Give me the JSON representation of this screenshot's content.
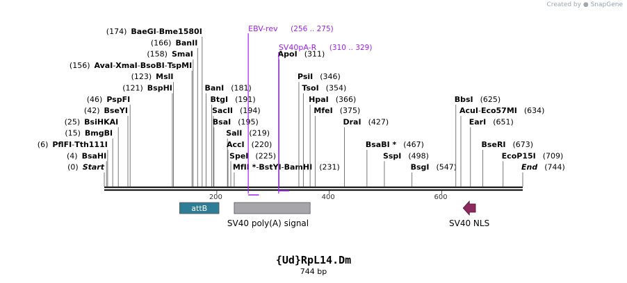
{
  "credit": {
    "prefix": "Created by",
    "brand": "SnapGene"
  },
  "map": {
    "name": "{Ud}RpL14.Dm",
    "length_label": "744 bp",
    "length_bp": 744,
    "colors": {
      "backbone": "#1a1a1a",
      "primer": "#a020f0",
      "attB": "#2e7d96",
      "polyA": "#a6a6aa",
      "nls": "#8b2a5e",
      "enzyme_line": "#777777"
    },
    "ticks": [
      {
        "label": "200",
        "bp": 200
      },
      {
        "label": "400",
        "bp": 400
      },
      {
        "label": "600",
        "bp": 600
      }
    ],
    "enzymes": [
      {
        "row": 1,
        "pos": "(174)",
        "names": [
          "BaeGI",
          "Bme1580I"
        ],
        "bp": 174
      },
      {
        "row": 2,
        "pos": "(166)",
        "names": [
          "BanII"
        ],
        "bp": 166
      },
      {
        "row": 3,
        "pos": "(158)",
        "names": [
          "SmaI"
        ],
        "bp": 158
      },
      {
        "row": 4,
        "pos": "(156)",
        "names": [
          "AvaI",
          "XmaI",
          "BsoBI",
          "TspMI"
        ],
        "bp": 156
      },
      {
        "row": 5,
        "pos": "(123)",
        "names": [
          "MslI"
        ],
        "bp": 123
      },
      {
        "row": 6,
        "pos": "(121)",
        "names": [
          "BspHI"
        ],
        "bp": 121
      },
      {
        "row": 7,
        "pos": "(46)",
        "names": [
          "PspFI"
        ],
        "bp": 46
      },
      {
        "row": 8,
        "pos": "(42)",
        "names": [
          "BseYI"
        ],
        "bp": 42
      },
      {
        "row": 9,
        "pos": "(25)",
        "names": [
          "BsiHKAI"
        ],
        "bp": 25
      },
      {
        "row": 10,
        "pos": "(15)",
        "names": [
          "BmgBI"
        ],
        "bp": 15
      },
      {
        "row": 11,
        "pos": "(6)",
        "names": [
          "PflFI",
          "Tth111I"
        ],
        "bp": 6
      },
      {
        "row": 12,
        "pos": "(4)",
        "names": [
          "BsaHI"
        ],
        "bp": 4
      },
      {
        "row": 13,
        "pos": "(0)",
        "names": [
          "Start"
        ],
        "bp": 0,
        "italic": true
      },
      {
        "row": 6,
        "pos": "(181)",
        "names": [
          "BanI"
        ],
        "bp": 181,
        "side": "right"
      },
      {
        "row": 7,
        "pos": "(191)",
        "names": [
          "BtgI"
        ],
        "bp": 191,
        "side": "right"
      },
      {
        "row": 8,
        "pos": "(194)",
        "names": [
          "SacII"
        ],
        "bp": 194,
        "side": "right"
      },
      {
        "row": 9,
        "pos": "(195)",
        "names": [
          "BsaI"
        ],
        "bp": 195,
        "side": "right"
      },
      {
        "row": 10,
        "pos": "(219)",
        "names": [
          "SalI"
        ],
        "bp": 219,
        "side": "right"
      },
      {
        "row": 11,
        "pos": "(220)",
        "names": [
          "AccI"
        ],
        "bp": 220,
        "side": "right"
      },
      {
        "row": 12,
        "pos": "(225)",
        "names": [
          "SpeI"
        ],
        "bp": 225,
        "side": "right"
      },
      {
        "row": 13,
        "pos": "(231)",
        "names": [
          "MfII *",
          "BstYI",
          "BamHI"
        ],
        "bp": 231,
        "side": "right"
      },
      {
        "row": 3,
        "pos": "(311)",
        "names": [
          "ApoI"
        ],
        "bp": 311,
        "side": "right"
      },
      {
        "row": 5,
        "pos": "(346)",
        "names": [
          "PsiI"
        ],
        "bp": 346,
        "side": "right"
      },
      {
        "row": 6,
        "pos": "(354)",
        "names": [
          "TsoI"
        ],
        "bp": 354,
        "side": "right"
      },
      {
        "row": 7,
        "pos": "(366)",
        "names": [
          "HpaI"
        ],
        "bp": 366,
        "side": "right"
      },
      {
        "row": 8,
        "pos": "(375)",
        "names": [
          "MfeI"
        ],
        "bp": 375,
        "side": "right"
      },
      {
        "row": 9,
        "pos": "(427)",
        "names": [
          "DraI"
        ],
        "bp": 427,
        "side": "right"
      },
      {
        "row": 11,
        "pos": "(467)",
        "names": [
          "BsaBI *"
        ],
        "bp": 467,
        "side": "right"
      },
      {
        "row": 12,
        "pos": "(498)",
        "names": [
          "SspI"
        ],
        "bp": 498,
        "side": "right"
      },
      {
        "row": 13,
        "pos": "(547)",
        "names": [
          "BsgI"
        ],
        "bp": 547,
        "side": "right"
      },
      {
        "row": 7,
        "pos": "(625)",
        "names": [
          "BbsI"
        ],
        "bp": 625,
        "side": "right"
      },
      {
        "row": 8,
        "pos": "(634)",
        "names": [
          "AcuI",
          "Eco57MI"
        ],
        "bp": 634,
        "side": "right"
      },
      {
        "row": 9,
        "pos": "(651)",
        "names": [
          "EarI"
        ],
        "bp": 651,
        "side": "right"
      },
      {
        "row": 11,
        "pos": "(673)",
        "names": [
          "BseRI"
        ],
        "bp": 673,
        "side": "right"
      },
      {
        "row": 12,
        "pos": "(709)",
        "names": [
          "EcoP15I"
        ],
        "bp": 709,
        "side": "right"
      },
      {
        "row": 13,
        "pos": "(744)",
        "names": [
          "End"
        ],
        "bp": 744,
        "side": "right",
        "italic": true
      }
    ],
    "primers": [
      {
        "name": "EBV-rev",
        "range": "(256 .. 275)",
        "start": 256,
        "end": 275
      },
      {
        "name": "SV40pA-R",
        "range": "(310 .. 329)",
        "start": 310,
        "end": 329
      }
    ],
    "features": [
      {
        "name": "attB",
        "start": 134,
        "end": 204,
        "kind": "box",
        "label_inside": true
      },
      {
        "name": "SV40 poly(A) signal",
        "start": 231,
        "end": 366,
        "kind": "box"
      },
      {
        "name": "SV40 NLS",
        "start": 638,
        "end": 660,
        "kind": "arrow-left"
      }
    ]
  }
}
